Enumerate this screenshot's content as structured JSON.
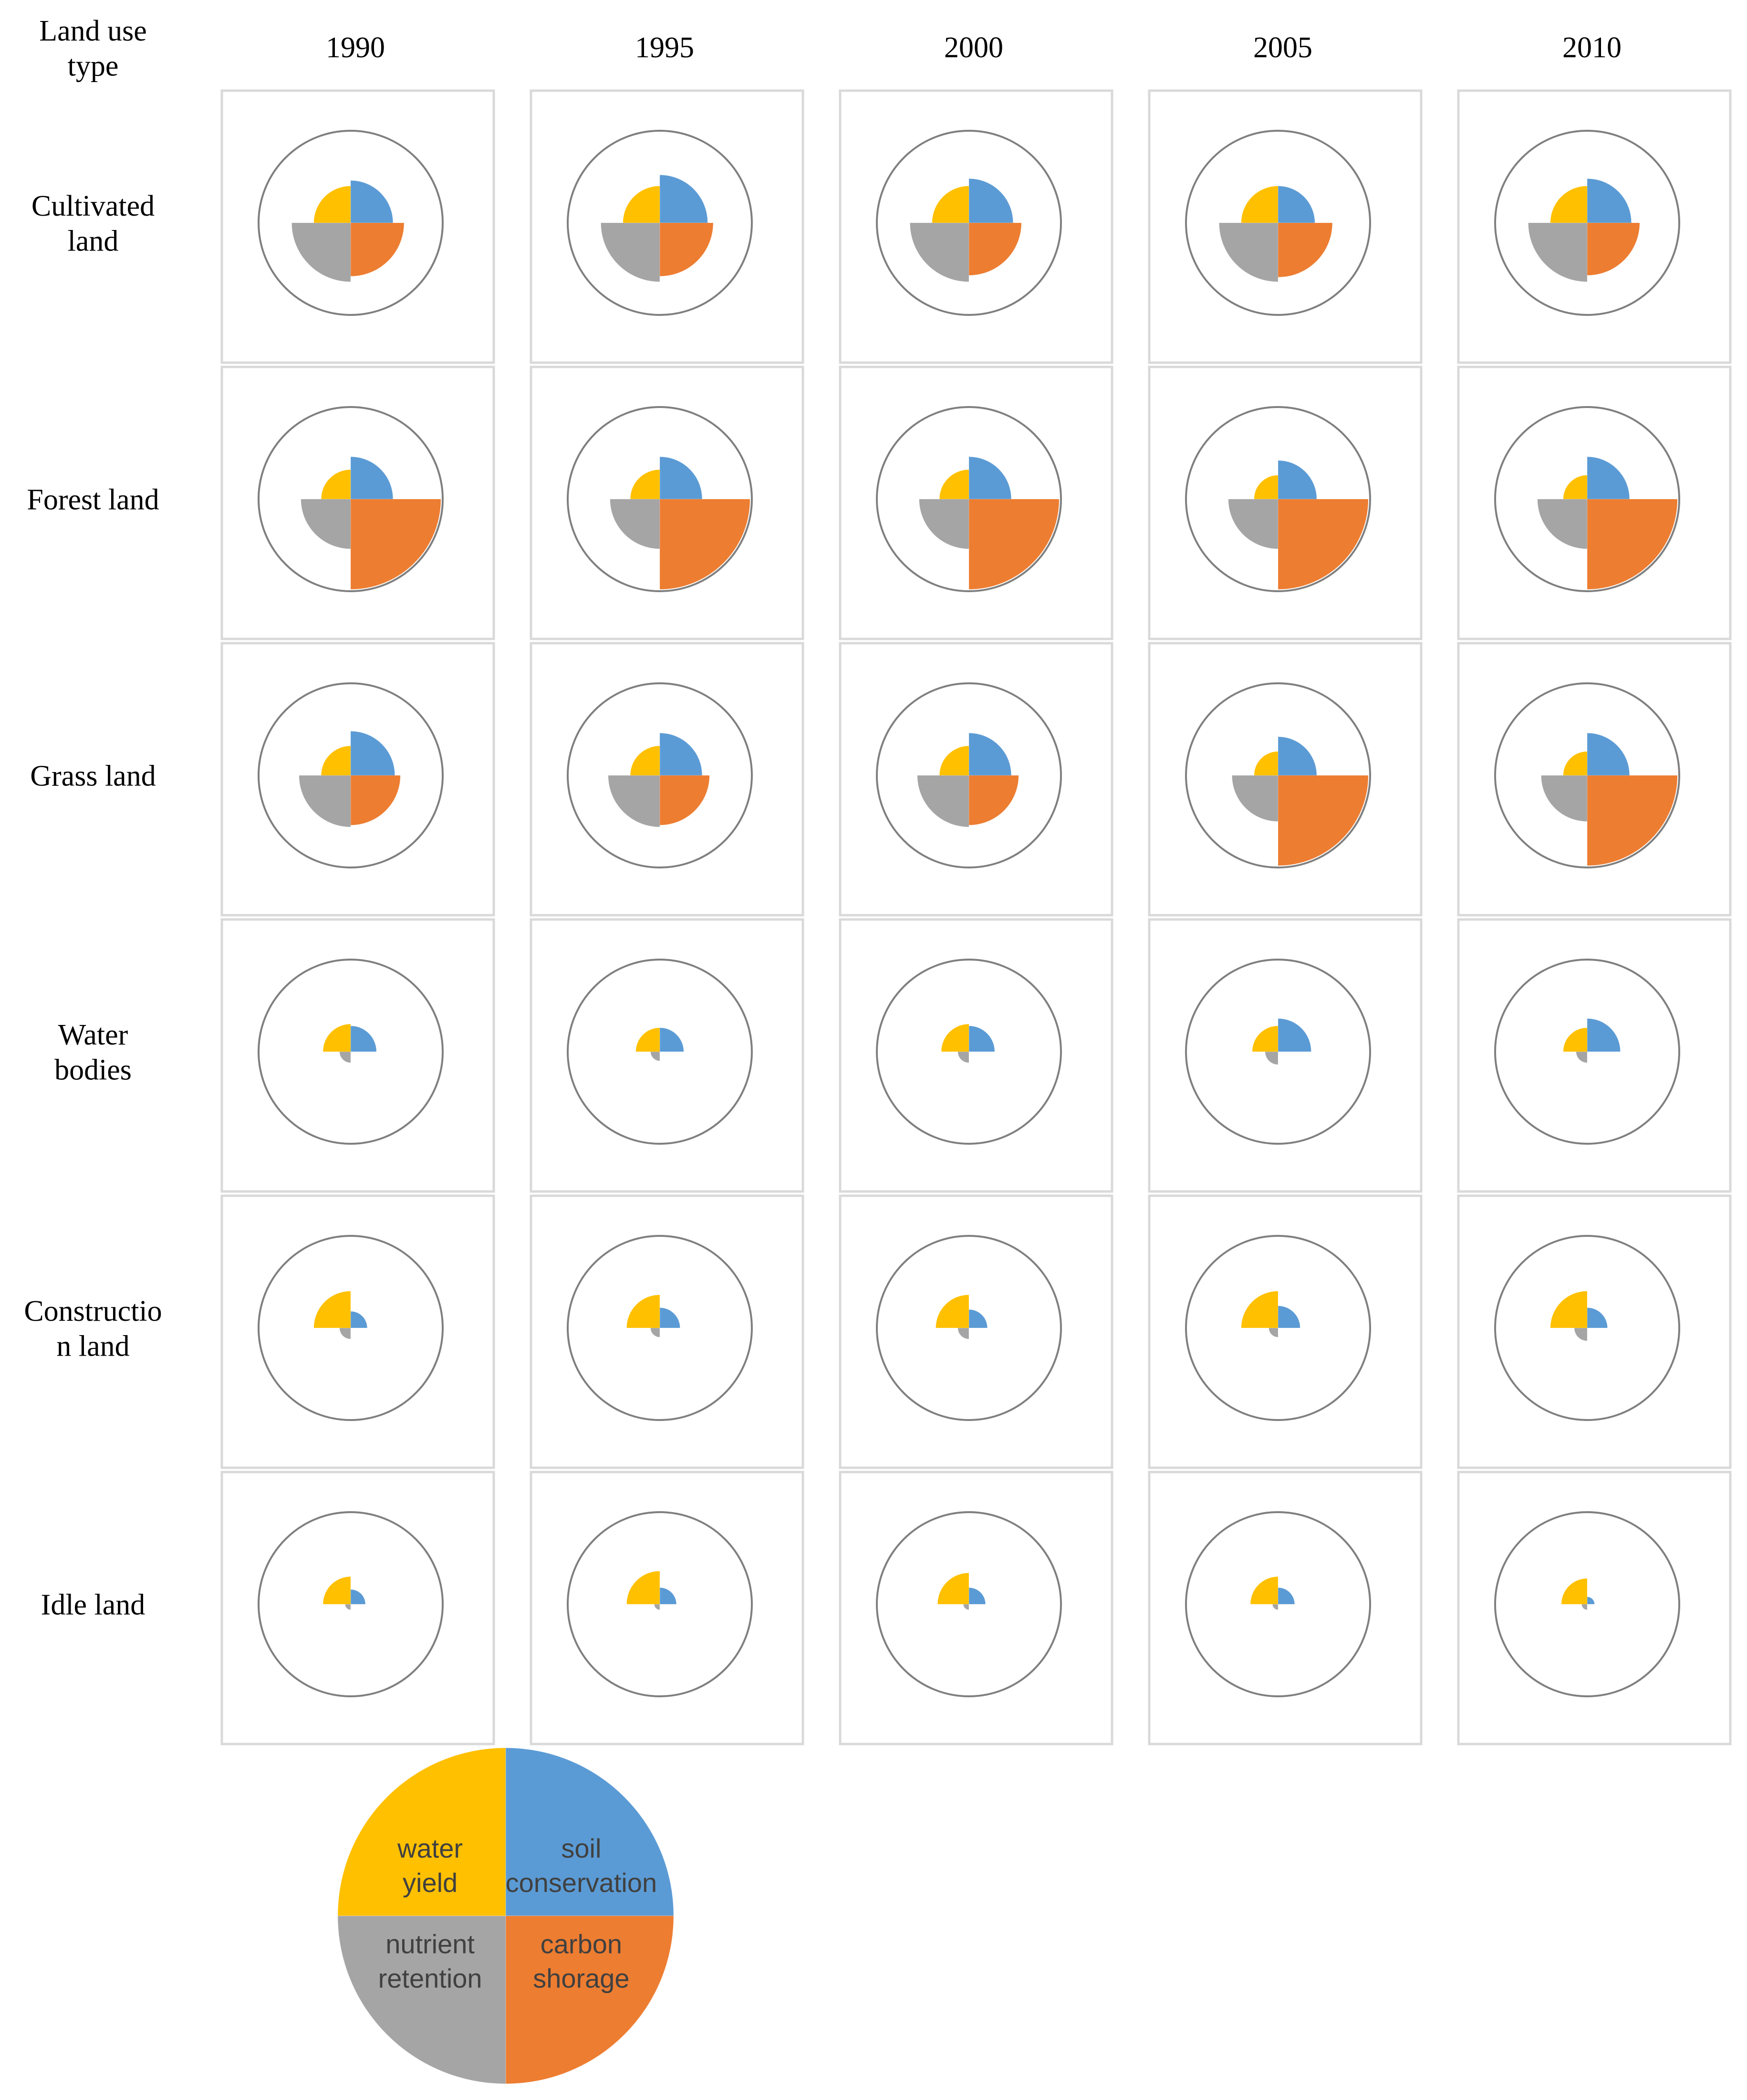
{
  "chart_data": {
    "type": "polar-area-grid",
    "header": {
      "row_label": "Land use\ntype"
    },
    "years": [
      "1990",
      "1995",
      "2000",
      "2005",
      "2010"
    ],
    "value_scale": "relative radius, outer circle = 1.0",
    "quadrant_order": [
      "soil conservation",
      "carbon shorage",
      "nutrient retention",
      "water yield"
    ],
    "rows": [
      {
        "label": "Cultivated\nland",
        "values": [
          [
            0.46,
            0.58,
            0.64,
            0.4
          ],
          [
            0.52,
            0.58,
            0.64,
            0.4
          ],
          [
            0.48,
            0.57,
            0.64,
            0.4
          ],
          [
            0.4,
            0.59,
            0.64,
            0.4
          ],
          [
            0.48,
            0.57,
            0.64,
            0.4
          ]
        ]
      },
      {
        "label": "Forest land",
        "values": [
          [
            0.46,
            0.98,
            0.54,
            0.32
          ],
          [
            0.46,
            0.98,
            0.54,
            0.32
          ],
          [
            0.46,
            0.98,
            0.54,
            0.32
          ],
          [
            0.42,
            0.98,
            0.54,
            0.26
          ],
          [
            0.46,
            0.98,
            0.54,
            0.26
          ]
        ]
      },
      {
        "label": "Grass land",
        "values": [
          [
            0.48,
            0.54,
            0.56,
            0.32
          ],
          [
            0.46,
            0.54,
            0.56,
            0.32
          ],
          [
            0.46,
            0.54,
            0.56,
            0.32
          ],
          [
            0.42,
            0.98,
            0.5,
            0.26
          ],
          [
            0.46,
            0.98,
            0.5,
            0.26
          ]
        ]
      },
      {
        "label": "Water\nbodies",
        "values": [
          [
            0.28,
            0.0,
            0.12,
            0.3
          ],
          [
            0.26,
            0.0,
            0.1,
            0.26
          ],
          [
            0.28,
            0.0,
            0.12,
            0.3
          ],
          [
            0.36,
            0.0,
            0.14,
            0.28
          ],
          [
            0.36,
            0.0,
            0.12,
            0.26
          ]
        ]
      },
      {
        "label": "Constructio\nn land",
        "values": [
          [
            0.18,
            0.0,
            0.12,
            0.4
          ],
          [
            0.22,
            0.0,
            0.1,
            0.36
          ],
          [
            0.2,
            0.0,
            0.12,
            0.36
          ],
          [
            0.24,
            0.0,
            0.1,
            0.4
          ],
          [
            0.22,
            0.0,
            0.14,
            0.4
          ]
        ]
      },
      {
        "label": "Idle land",
        "values": [
          [
            0.16,
            0.0,
            0.06,
            0.3
          ],
          [
            0.18,
            0.0,
            0.06,
            0.36
          ],
          [
            0.18,
            0.0,
            0.06,
            0.34
          ],
          [
            0.18,
            0.0,
            0.06,
            0.3
          ],
          [
            0.08,
            0.0,
            0.06,
            0.28
          ]
        ]
      }
    ],
    "legend": {
      "quadrants": [
        {
          "key": "soil conservation",
          "lines": [
            "soil",
            "conservation"
          ]
        },
        {
          "key": "carbon shorage",
          "lines": [
            "carbon",
            "shorage"
          ]
        },
        {
          "key": "nutrient retention",
          "lines": [
            "nutrient",
            "retention"
          ]
        },
        {
          "key": "water yield",
          "lines": [
            "water",
            "yield"
          ]
        }
      ]
    },
    "colors": {
      "soil conservation": "#5B9BD5",
      "carbon shorage": "#ED7D31",
      "nutrient retention": "#A5A5A5",
      "water yield": "#FFC000",
      "cell_border": "#D9D9D9",
      "circle_outline": "#7F7F7F",
      "label_text": "#000000",
      "legend_text": "#404040"
    }
  }
}
